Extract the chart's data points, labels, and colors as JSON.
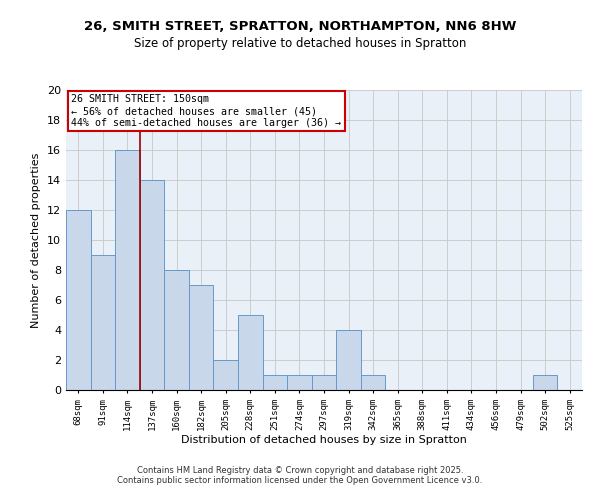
{
  "title_line1": "26, SMITH STREET, SPRATTON, NORTHAMPTON, NN6 8HW",
  "title_line2": "Size of property relative to detached houses in Spratton",
  "xlabel": "Distribution of detached houses by size in Spratton",
  "ylabel": "Number of detached properties",
  "categories": [
    "68sqm",
    "91sqm",
    "114sqm",
    "137sqm",
    "160sqm",
    "182sqm",
    "205sqm",
    "228sqm",
    "251sqm",
    "274sqm",
    "297sqm",
    "319sqm",
    "342sqm",
    "365sqm",
    "388sqm",
    "411sqm",
    "434sqm",
    "456sqm",
    "479sqm",
    "502sqm",
    "525sqm"
  ],
  "values": [
    12,
    9,
    16,
    14,
    8,
    7,
    2,
    5,
    1,
    1,
    1,
    4,
    1,
    0,
    0,
    0,
    0,
    0,
    0,
    1,
    0
  ],
  "bar_color": "#c8d8ea",
  "bar_edge_color": "#6699cc",
  "highlight_index": 3,
  "highlight_line_color": "#990000",
  "annotation_box_color": "#cc0000",
  "annotation_text": "26 SMITH STREET: 150sqm\n← 56% of detached houses are smaller (45)\n44% of semi-detached houses are larger (36) →",
  "ylim": [
    0,
    20
  ],
  "yticks": [
    0,
    2,
    4,
    6,
    8,
    10,
    12,
    14,
    16,
    18,
    20
  ],
  "grid_color": "#cccccc",
  "bg_color": "#eaf0f8",
  "footer_line1": "Contains HM Land Registry data © Crown copyright and database right 2025.",
  "footer_line2": "Contains public sector information licensed under the Open Government Licence v3.0."
}
